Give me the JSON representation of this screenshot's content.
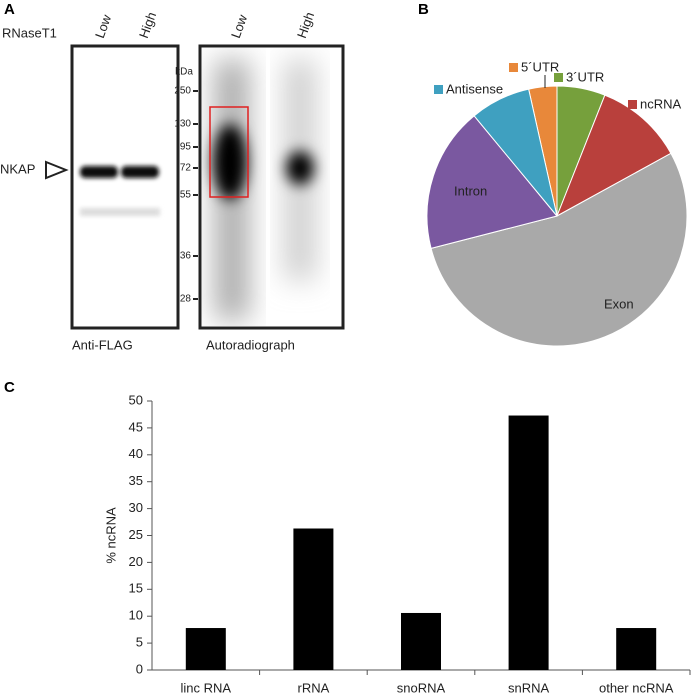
{
  "panels": [
    "A",
    "B",
    "C"
  ],
  "panel_a": {
    "treatment": "RNaseT1",
    "lanes": [
      "Low",
      "High",
      "Low",
      "High"
    ],
    "unit": "kDa",
    "markers": [
      "250",
      "130",
      "95",
      "72",
      "55",
      "36",
      "28"
    ],
    "protein": "NKAP",
    "blot_labels": [
      "Anti-FLAG",
      "Autoradiograph"
    ]
  },
  "chart_data": [
    {
      "type": "pie",
      "categories": [
        "5´UTR",
        "3´UTR",
        "ncRNA",
        "Exon",
        "Intron",
        "Antisense"
      ],
      "values": [
        3.5,
        6,
        11,
        54,
        18,
        7.5
      ],
      "colors": [
        "#e8883a",
        "#76a03c",
        "#b9403c",
        "#a9a9a9",
        "#7a58a0",
        "#3fa0c0"
      ]
    },
    {
      "type": "bar",
      "y_label": "% ncRNA",
      "categories": [
        "linc RNA",
        "rRNA",
        "snoRNA",
        "snRNA",
        "other ncRNA"
      ],
      "values": [
        7.8,
        26.3,
        10.6,
        47.3,
        7.8
      ],
      "color": "#000000",
      "ylim": [
        0,
        50
      ],
      "yticks": [
        0,
        5,
        10,
        15,
        20,
        25,
        30,
        35,
        40,
        45,
        50
      ]
    }
  ]
}
